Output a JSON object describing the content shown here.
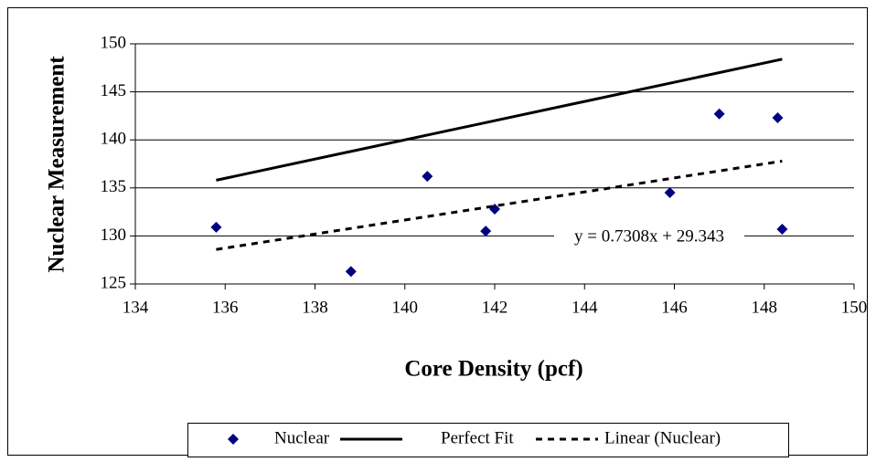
{
  "chart_data": {
    "type": "scatter",
    "xlabel": "Core Density (pcf)",
    "ylabel": "Nuclear Measurement",
    "xlim": [
      134,
      150
    ],
    "xticks": [
      134,
      136,
      138,
      140,
      142,
      144,
      146,
      148,
      150
    ],
    "ylim": [
      125,
      150
    ],
    "yticks": [
      125,
      130,
      135,
      140,
      145,
      150
    ],
    "grid": true,
    "legend": "bottom",
    "annotation": "y = 0.7308x + 29.343",
    "series": [
      {
        "name": "Nuclear",
        "style": "markers",
        "color": "#000080",
        "x": [
          135.8,
          138.8,
          140.5,
          141.8,
          142.0,
          145.9,
          147.0,
          148.3,
          148.4
        ],
        "values": [
          130.9,
          126.3,
          136.2,
          130.5,
          132.8,
          134.5,
          142.7,
          142.3,
          130.7
        ]
      },
      {
        "name": "Perfect Fit",
        "style": "solid",
        "color": "#000000",
        "x": [
          135.8,
          148.4
        ],
        "values": [
          135.8,
          148.4
        ]
      },
      {
        "name": "Linear (Nuclear)",
        "style": "dashed",
        "color": "#000000",
        "x": [
          135.8,
          148.4
        ],
        "values": [
          128.59,
          137.79
        ]
      }
    ]
  }
}
